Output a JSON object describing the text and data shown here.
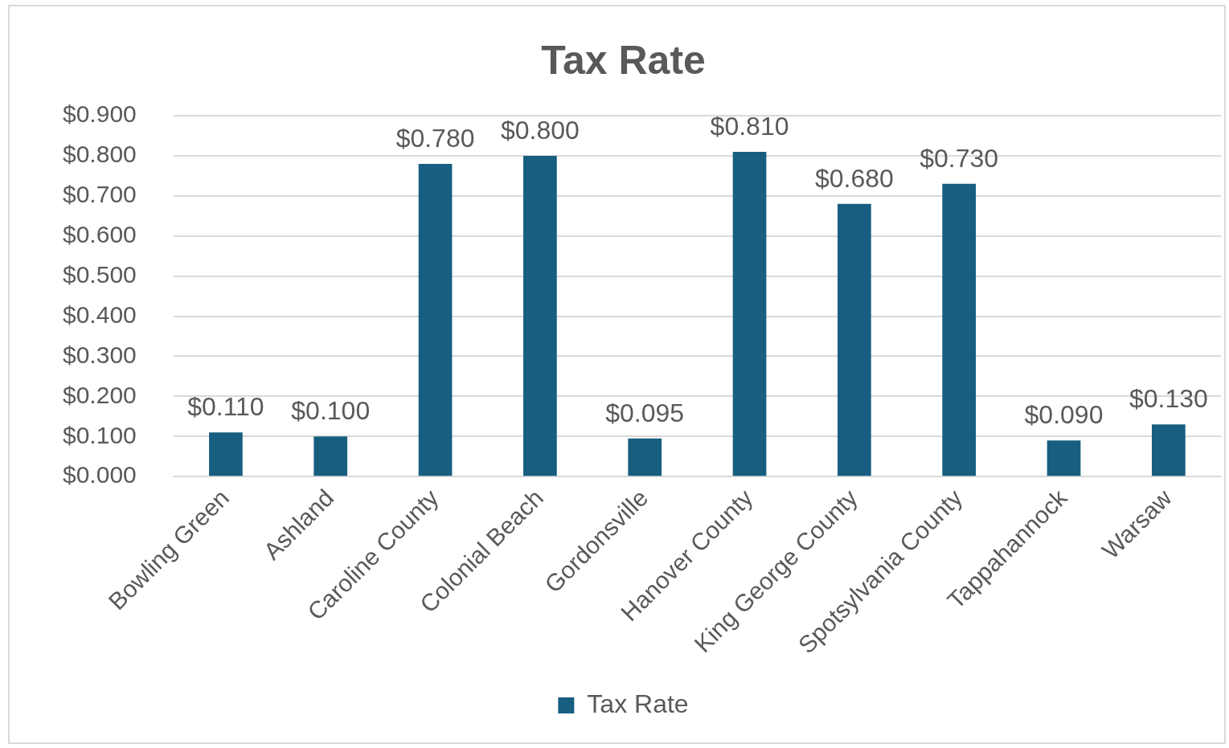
{
  "chart_data": {
    "type": "bar",
    "title": "Tax Rate",
    "categories": [
      "Bowling Green",
      "Ashland",
      "Caroline County",
      "Colonial Beach",
      "Gordonsville",
      "Hanover County",
      "King George County",
      "Spotsylvania County",
      "Tappahannock",
      "Warsaw"
    ],
    "series": [
      {
        "name": "Tax Rate",
        "color": "#175e81",
        "values": [
          0.11,
          0.1,
          0.78,
          0.8,
          0.095,
          0.81,
          0.68,
          0.73,
          0.09,
          0.13
        ],
        "value_labels": [
          "$0.110",
          "$0.100",
          "$0.780",
          "$0.800",
          "$0.095",
          "$0.810",
          "$0.680",
          "$0.730",
          "$0.090",
          "$0.130"
        ]
      }
    ],
    "ylim": [
      0,
      0.9
    ],
    "yticks": [
      {
        "value": 0,
        "label": "$0.000"
      },
      {
        "value": 0.1,
        "label": "$0.100"
      },
      {
        "value": 0.2,
        "label": "$0.200"
      },
      {
        "value": 0.3,
        "label": "$0.300"
      },
      {
        "value": 0.4,
        "label": "$0.400"
      },
      {
        "value": 0.5,
        "label": "$0.500"
      },
      {
        "value": 0.6,
        "label": "$0.600"
      },
      {
        "value": 0.7,
        "label": "$0.700"
      },
      {
        "value": 0.8,
        "label": "$0.800"
      },
      {
        "value": 0.9,
        "label": "$0.900"
      }
    ],
    "grid": "y",
    "legend": "bottom"
  }
}
